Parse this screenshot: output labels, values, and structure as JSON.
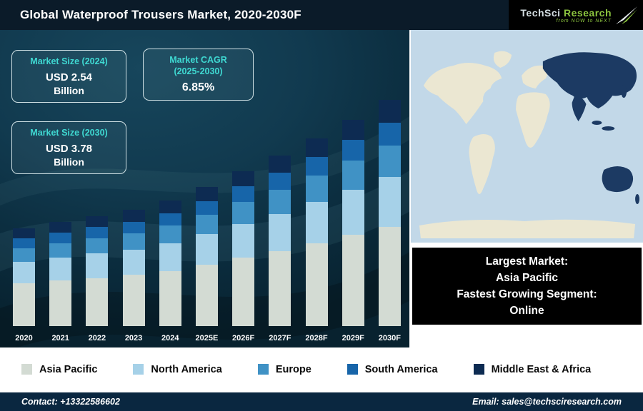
{
  "header": {
    "title": "Global Waterproof Trousers Market, 2020-2030F",
    "logo": {
      "brand1": "TechSci",
      "brand2": "Research",
      "tagline": "from NOW to NEXT"
    }
  },
  "info_boxes": [
    {
      "title": "Market Size (2024)",
      "value": "USD 2.54",
      "value2": "Billion"
    },
    {
      "title": "Market CAGR",
      "subtitle": "(2025-2030)",
      "value": "6.85%"
    },
    {
      "title": "Market Size (2030)",
      "value": "USD 3.78",
      "value2": "Billion"
    }
  ],
  "chart_data": {
    "type": "bar",
    "stacked": true,
    "title": "Global Waterproof Trousers Market, 2020-2030F",
    "unit": "USD Billion",
    "categories": [
      "2020",
      "2021",
      "2022",
      "2023",
      "2024",
      "2025E",
      "2026F",
      "2027F",
      "2028F",
      "2029F",
      "2030F"
    ],
    "series": [
      {
        "name": "Asia Pacific",
        "color": "#d3dbd3",
        "values": [
          0.97,
          1.0,
          1.03,
          1.07,
          1.12,
          1.19,
          1.28,
          1.36,
          1.46,
          1.56,
          1.66
        ]
      },
      {
        "name": "North America",
        "color": "#a6d1e8",
        "values": [
          0.48,
          0.5,
          0.52,
          0.53,
          0.56,
          0.6,
          0.64,
          0.68,
          0.73,
          0.78,
          0.83
        ]
      },
      {
        "name": "Europe",
        "color": "#4092c5",
        "values": [
          0.31,
          0.32,
          0.33,
          0.34,
          0.36,
          0.38,
          0.41,
          0.43,
          0.46,
          0.5,
          0.53
        ]
      },
      {
        "name": "South America",
        "color": "#1765a9",
        "values": [
          0.22,
          0.23,
          0.24,
          0.24,
          0.25,
          0.27,
          0.29,
          0.31,
          0.33,
          0.35,
          0.38
        ]
      },
      {
        "name": "Middle East & Africa",
        "color": "#0d2b52",
        "values": [
          0.22,
          0.23,
          0.23,
          0.25,
          0.25,
          0.27,
          0.28,
          0.32,
          0.33,
          0.35,
          0.38
        ]
      }
    ],
    "totals": [
      2.2,
      2.28,
      2.35,
      2.43,
      2.54,
      2.71,
      2.9,
      3.1,
      3.31,
      3.54,
      3.78
    ],
    "annotations": [
      "Market Size (2024): USD 2.54 Billion",
      "Market CAGR (2025-2030): 6.85%",
      "Market Size (2030): USD 3.78 Billion"
    ],
    "legend_position": "bottom",
    "gridlines": false,
    "y_axis_visible": false
  },
  "map_panel": {
    "highlight_region": "Asia Pacific",
    "ocean_color": "#c2d8e8",
    "land_color": "#ebe7d2",
    "highlight_color": "#1c3a63"
  },
  "callout_box": {
    "lines": [
      "Largest Market:",
      "Asia Pacific",
      "Fastest Growing Segment:",
      "Online"
    ]
  },
  "footer": {
    "contact": "Contact: +13322586602",
    "email": "Email: sales@techsciresearch.com"
  },
  "colors": {
    "header_bg": "#0b1b29",
    "chart_bg": "#0e3144",
    "accent_teal": "#3fd9d2",
    "logo_green": "#8dc63f",
    "footer_bg": "#0a2740"
  }
}
